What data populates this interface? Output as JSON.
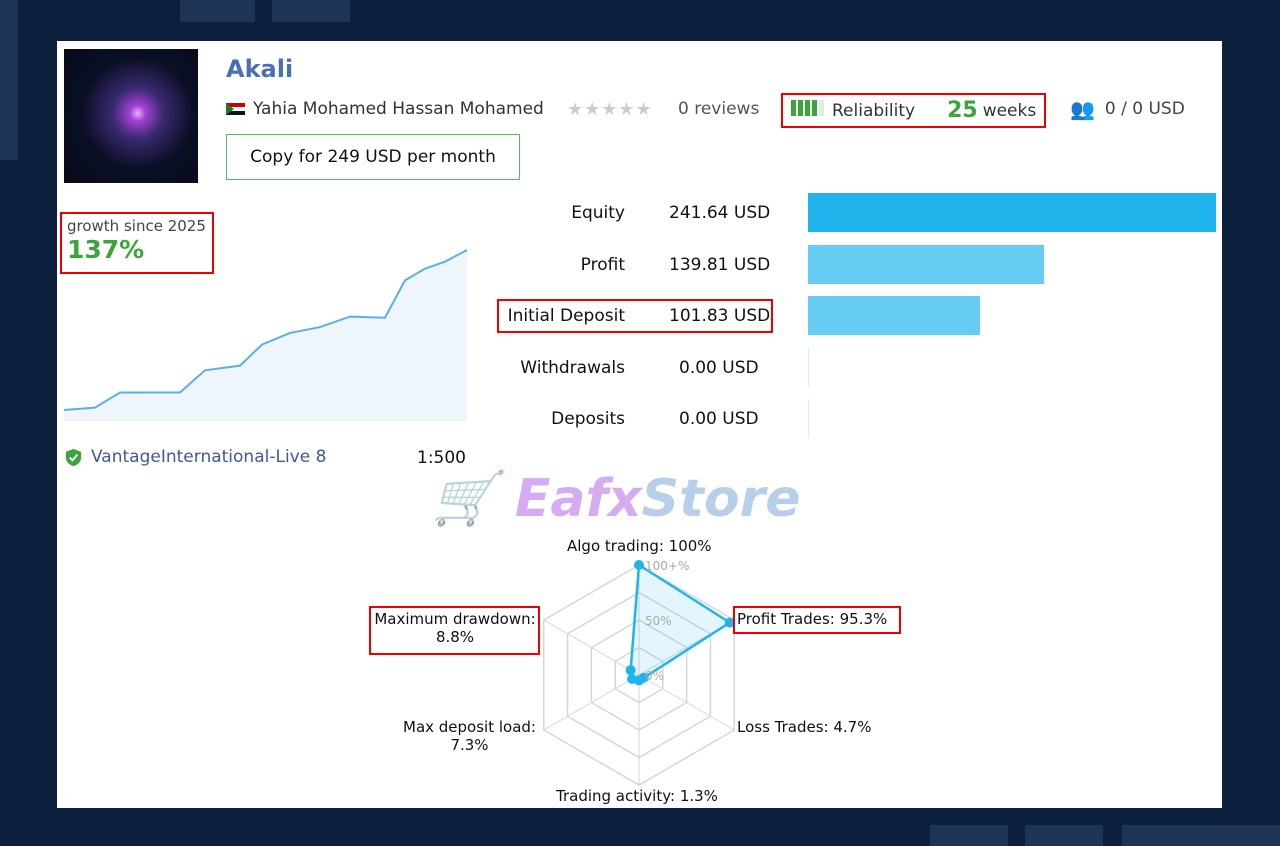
{
  "header": {
    "title": "Akali",
    "author": "Yahia Mohamed Hassan Mohamed",
    "copy_button": "Copy for 249 USD per month",
    "reviews": "0 reviews",
    "rating_stars": 0,
    "reliability_label": "Reliability",
    "reliability_bars": "4 of 5",
    "weeks_value": "25",
    "weeks_unit": "weeks",
    "subscribers": "0 / 0 USD",
    "icons": [
      "flag-sudan-icon",
      "star-icon",
      "subscribers-icon"
    ]
  },
  "growth": {
    "label": "growth since 2025",
    "value": "137%"
  },
  "stats": [
    {
      "label": "Equity",
      "value": "241.64 USD",
      "amount": 241.64
    },
    {
      "label": "Profit",
      "value": "139.81 USD",
      "amount": 139.81
    },
    {
      "label": "Initial Deposit",
      "value": "101.83 USD",
      "amount": 101.83
    },
    {
      "label": "Withdrawals",
      "value": "0.00 USD",
      "amount": 0
    },
    {
      "label": "Deposits",
      "value": "0.00 USD",
      "amount": 0
    }
  ],
  "broker": {
    "name": "VantageInternational-Live 8",
    "leverage": "1:500",
    "icon": "verified-shield-icon"
  },
  "watermark": "EafxStore",
  "colors": {
    "accent": "#1fb5ec",
    "bar_light": "#66cdf2",
    "green": "#3aa53a",
    "title": "#4a6fb5",
    "highlight": "#ee0000"
  },
  "chart_data": [
    {
      "type": "line",
      "title": "",
      "series": [
        {
          "values": [
            0,
            2,
            15,
            15,
            34,
            38,
            56,
            66,
            71,
            80,
            79,
            111,
            121,
            127,
            137
          ]
        }
      ],
      "ylim": [
        0,
        137
      ],
      "grid": false
    },
    {
      "type": "radar",
      "axes": [
        {
          "label": "Algo trading: 100%",
          "value": 100
        },
        {
          "label": "Profit Trades: 95.3%",
          "value": 95.3
        },
        {
          "label": "Loss Trades: 4.7%",
          "value": 4.7
        },
        {
          "label": "Trading activity: 1.3%",
          "value": 1.3
        },
        {
          "label": "Max deposit load:",
          "value_text": "7.3%",
          "value": 7.3
        },
        {
          "label": "Maximum drawdown:",
          "value_text": "8.8%",
          "value": 8.8
        }
      ],
      "ticks": [
        "100+%",
        "50%",
        "0%"
      ],
      "range": [
        0,
        100
      ]
    }
  ]
}
